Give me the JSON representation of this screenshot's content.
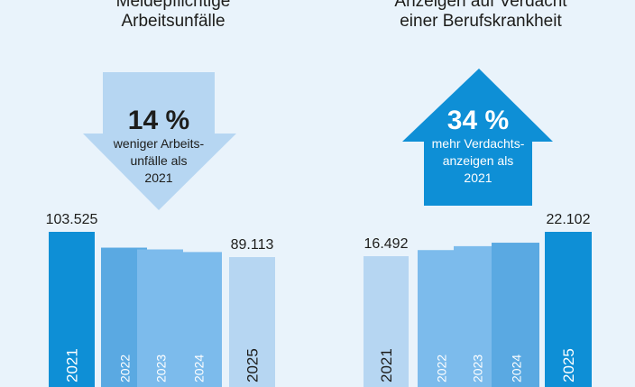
{
  "left": {
    "title_lines": [
      "Meldepflichtige",
      "Arbeitsunfälle"
    ],
    "arrow": {
      "percent": "14 %",
      "lines": [
        "weniger Arbeits-",
        "unfälle als",
        "2021"
      ]
    }
  },
  "right": {
    "title_lines": [
      "Anzeigen auf Verdacht",
      "einer Berufskrankheit"
    ],
    "arrow": {
      "percent": "34 %",
      "lines": [
        "mehr Verdachts-",
        "anzeigen als",
        "2021"
      ]
    }
  },
  "colors": {
    "dark": "#0e8fd6",
    "mid": "#5aa9e2",
    "mid2": "#7cbbec",
    "light": "#b6d6f2",
    "bg": "#e9f3fb"
  },
  "chart_data": [
    {
      "type": "bar",
      "title": "Meldepflichtige Arbeitsunfälle",
      "categories": [
        "2021",
        "2022",
        "2023",
        "2024",
        "2025"
      ],
      "values": [
        103525,
        94500,
        93500,
        92000,
        89113
      ],
      "value_labels": [
        "103.525",
        "",
        "",
        "",
        "89.113"
      ]
    },
    {
      "type": "bar",
      "title": "Anzeigen auf Verdacht einer Berufskrankheit",
      "categories": [
        "2021",
        "2022",
        "2023",
        "2024",
        "2025"
      ],
      "values": [
        16492,
        17900,
        18800,
        19600,
        22102
      ],
      "value_labels": [
        "16.492",
        "",
        "",
        "",
        "22.102"
      ]
    }
  ]
}
